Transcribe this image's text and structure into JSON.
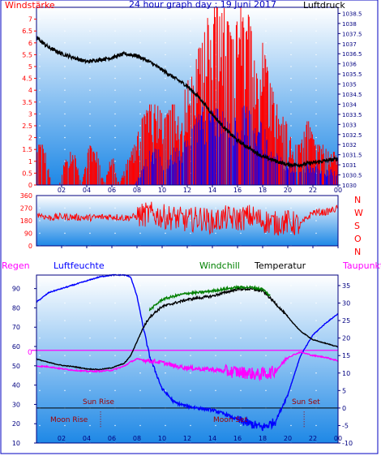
{
  "title": "24 hour graph day : 19 Juni 2017",
  "colors": {
    "bg_top": "#ffffff",
    "bg_bottom": "#1e88e6",
    "wind": "#ff0000",
    "gust": "#0000ff",
    "pressure": "#000000",
    "humidity": "#0000ff",
    "temperature": "#000000",
    "windchill": "#008000",
    "dewpoint": "#ff00ff",
    "rain_label": "#ff00ff",
    "sun_text": "#a00000",
    "axis_red": "#ff0000",
    "axis_blue": "#0000a0"
  },
  "chart_data": [
    {
      "type": "line",
      "panel": "wind-pressure",
      "left_label": "Windstärke",
      "right_label": "Luftdruck",
      "left_ticks": [
        "0",
        "0.5",
        "1",
        "1.5",
        "2",
        "2.5",
        "3",
        "3.5",
        "4",
        "4.5",
        "5",
        "5.5",
        "6",
        "6.5",
        "7"
      ],
      "right_ticks": [
        "1030",
        "1030.5",
        "1031",
        "1031.5",
        "1032",
        "1032.5",
        "1033",
        "1033.5",
        "1034",
        "1034.5",
        "1035",
        "1035.5",
        "1036",
        "1036.5",
        "1037",
        "1037.5",
        "1038",
        "1038.5"
      ],
      "x_ticks": [
        "02",
        "04",
        "06",
        "08",
        "10",
        "12",
        "14",
        "16",
        "18",
        "20",
        "22",
        "00"
      ],
      "ylim_left": [
        0,
        7.5
      ],
      "ylim_right": [
        1030,
        1038.8
      ],
      "series": [
        {
          "name": "",
          "color": "#000000",
          "axis": "right",
          "smooth": true,
          "x": [
            0,
            1,
            2,
            3,
            4,
            5,
            6,
            7,
            8,
            9,
            10,
            11,
            12,
            13,
            14,
            15,
            16,
            17,
            18,
            19,
            20,
            21,
            22,
            23,
            24
          ],
          "y": [
            1037.3,
            1036.8,
            1036.5,
            1036.3,
            1036.1,
            1036.2,
            1036.3,
            1036.5,
            1036.4,
            1036.1,
            1035.7,
            1035.3,
            1034.9,
            1034.3,
            1033.5,
            1032.8,
            1032.2,
            1031.8,
            1031.4,
            1031.2,
            1031.0,
            1031.0,
            1031.1,
            1031.2,
            1031.3
          ]
        }
      ],
      "wind_bars": {
        "x": [
          0,
          0.6,
          1.2,
          1.8,
          2.4,
          3,
          3.6,
          4.2,
          4.8,
          5.4,
          6,
          6.6,
          7.2,
          7.8,
          8.4,
          9,
          9.6,
          10.2,
          10.8,
          11.4,
          12,
          12.6,
          13.2,
          13.8,
          14.4,
          15,
          15.6,
          16.2,
          16.8,
          17.4,
          18,
          18.6,
          19.2,
          19.8,
          20.4,
          21,
          21.6,
          22.2,
          22.8,
          23.4
        ],
        "wind": [
          1.7,
          1.7,
          0.0,
          0.0,
          1.4,
          1.4,
          0.0,
          1.7,
          1.4,
          0.0,
          1.4,
          0.0,
          1.0,
          1.7,
          2.8,
          3.4,
          3.4,
          2.8,
          3.4,
          3.4,
          4.3,
          5.5,
          6.0,
          7.5,
          7.5,
          7.5,
          6.0,
          7.5,
          7.5,
          5.5,
          6.0,
          4.3,
          3.4,
          2.8,
          1.7,
          1.7,
          2.8,
          1.7,
          1.7,
          1.4
        ],
        "gust": [
          0.0,
          0.0,
          0.0,
          0.0,
          0.0,
          0.0,
          0.0,
          0.0,
          0.0,
          0.0,
          0.0,
          0.0,
          0.0,
          0.0,
          0.7,
          1.7,
          1.7,
          1.0,
          1.7,
          1.7,
          2.0,
          2.8,
          3.4,
          3.4,
          3.4,
          3.4,
          2.8,
          3.4,
          3.4,
          2.8,
          2.8,
          2.0,
          1.7,
          1.0,
          1.0,
          0.7,
          1.0,
          1.0,
          0.7,
          0.7
        ]
      }
    },
    {
      "type": "line",
      "panel": "wind-direction",
      "left_ticks": [
        "0",
        "90",
        "180",
        "270",
        "360"
      ],
      "right_letters": [
        "N",
        "W",
        "S",
        "O",
        "N"
      ],
      "ylim": [
        0,
        360
      ],
      "series": [
        {
          "name": "",
          "color": "#ff0000",
          "x": [
            0,
            1,
            2,
            3,
            4,
            5,
            6,
            7,
            8,
            9,
            10,
            11,
            12,
            13,
            14,
            15,
            16,
            17,
            18,
            19,
            20,
            21,
            22,
            23,
            24
          ],
          "y": [
            230,
            200,
            210,
            205,
            200,
            205,
            210,
            200,
            210,
            230,
            210,
            200,
            180,
            200,
            170,
            200,
            190,
            210,
            180,
            160,
            170,
            150,
            240,
            240,
            270
          ]
        }
      ]
    },
    {
      "type": "line",
      "panel": "temperature-humidity",
      "headers": {
        "rain": "Regen",
        "humidity": "Luftfeuchte",
        "windchill": "Windchill",
        "temperature": "Temperatur",
        "dewpoint": "Taupunkt"
      },
      "left_ticks": [
        "10",
        "20",
        "30",
        "40",
        "50",
        "60",
        "70",
        "80",
        "90"
      ],
      "right_ticks": [
        "-10",
        "-5",
        "0",
        "5",
        "10",
        "15",
        "20",
        "25",
        "30",
        "35"
      ],
      "x_ticks": [
        "02",
        "04",
        "06",
        "08",
        "10",
        "12",
        "14",
        "16",
        "18",
        "20",
        "22",
        "00"
      ],
      "rain_marker": "0",
      "sun_rise": "Sun Rise",
      "sun_set": "Sun Set",
      "moon_rise": "Moon Rise",
      "moon_set": "Moon Set",
      "ylim_left": [
        10,
        97
      ],
      "ylim_right": [
        -10,
        38
      ],
      "series": [
        {
          "name": "Luftfeuchte",
          "color": "#0000ff",
          "axis": "left",
          "smooth": true,
          "x": [
            0,
            1,
            2,
            3,
            4,
            5,
            6,
            7,
            7.5,
            8,
            8.5,
            9,
            10,
            11,
            12,
            13,
            14,
            15,
            16,
            17,
            18,
            19,
            20,
            20.5,
            21,
            22,
            23,
            24
          ],
          "y": [
            83,
            88,
            90,
            92,
            94,
            96,
            97,
            97,
            96,
            86,
            70,
            55,
            38,
            31,
            29,
            28,
            27,
            25,
            22,
            20,
            18,
            21,
            35,
            45,
            55,
            66,
            72,
            77
          ]
        },
        {
          "name": "Temperatur",
          "color": "#000000",
          "axis": "right",
          "smooth": true,
          "x": [
            0,
            1,
            2,
            3,
            4,
            5,
            6,
            7,
            7.5,
            8,
            8.5,
            9,
            10,
            11,
            12,
            13,
            14,
            15,
            16,
            17,
            18,
            19,
            20,
            21,
            22,
            23,
            24
          ],
          "y": [
            14,
            13,
            12.2,
            11.8,
            11.2,
            11.0,
            11.5,
            12.8,
            15.0,
            19,
            23,
            26,
            29,
            30,
            31,
            31.5,
            32,
            33,
            34,
            34,
            33.5,
            30,
            26,
            22,
            19.5,
            18.5,
            17.5
          ]
        },
        {
          "name": "Windchill",
          "color": "#008000",
          "axis": "right",
          "smooth": true,
          "x": [
            9,
            10,
            11,
            12,
            13,
            14,
            15,
            16,
            17,
            18,
            18.6
          ],
          "y": [
            28,
            31,
            32,
            32.8,
            33,
            33.5,
            34,
            34.5,
            34.5,
            34,
            32
          ]
        },
        {
          "name": "Taupunkt",
          "color": "#ff00ff",
          "axis": "right",
          "smooth": true,
          "x": [
            0,
            1,
            2,
            3,
            4,
            5,
            6,
            7,
            7.5,
            8,
            9,
            10,
            11,
            12,
            13,
            14,
            15,
            16,
            17,
            17.5,
            18,
            18.5,
            19,
            20,
            21,
            22,
            23,
            24
          ],
          "y": [
            12,
            11.8,
            11.2,
            10.8,
            10.5,
            10.5,
            10.8,
            12,
            13.2,
            14,
            13.5,
            13,
            12,
            11.5,
            11.2,
            11,
            10.5,
            10.3,
            10,
            9.5,
            9.8,
            10,
            10.5,
            14.5,
            16,
            15,
            14.5,
            13.5
          ]
        }
      ]
    }
  ]
}
